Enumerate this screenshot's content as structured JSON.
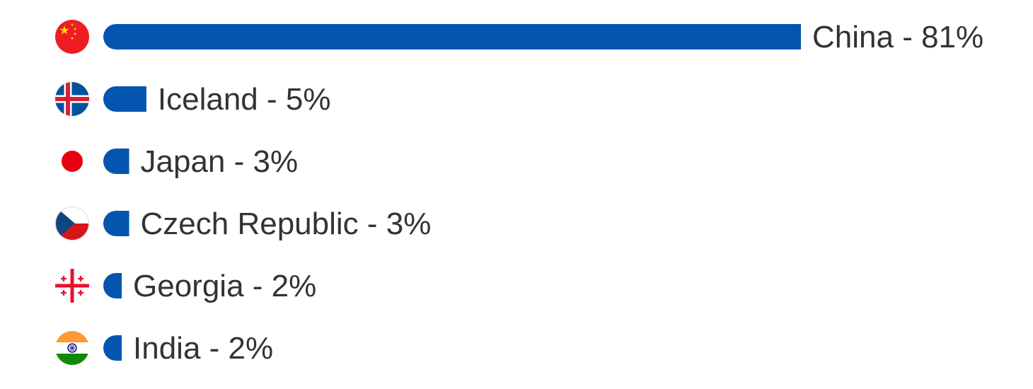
{
  "chart_data": {
    "type": "bar",
    "orientation": "horizontal",
    "categories": [
      "China",
      "Iceland",
      "Japan",
      "Czech Republic",
      "Georgia",
      "India"
    ],
    "values": [
      81,
      5,
      3,
      3,
      2,
      2
    ],
    "labels": [
      "China - 81%",
      "Iceland - 5%",
      "Japan - 3%",
      "Czech Republic - 3%",
      "Georgia - 2%",
      "India - 2%"
    ],
    "flags": [
      "china-flag-icon",
      "iceland-flag-icon",
      "japan-flag-icon",
      "czech-republic-flag-icon",
      "georgia-flag-icon",
      "india-flag-icon"
    ],
    "unit": "%",
    "legend": "none",
    "grid": false
  },
  "colors": {
    "bar": "#0455b0",
    "label": "#333333"
  }
}
